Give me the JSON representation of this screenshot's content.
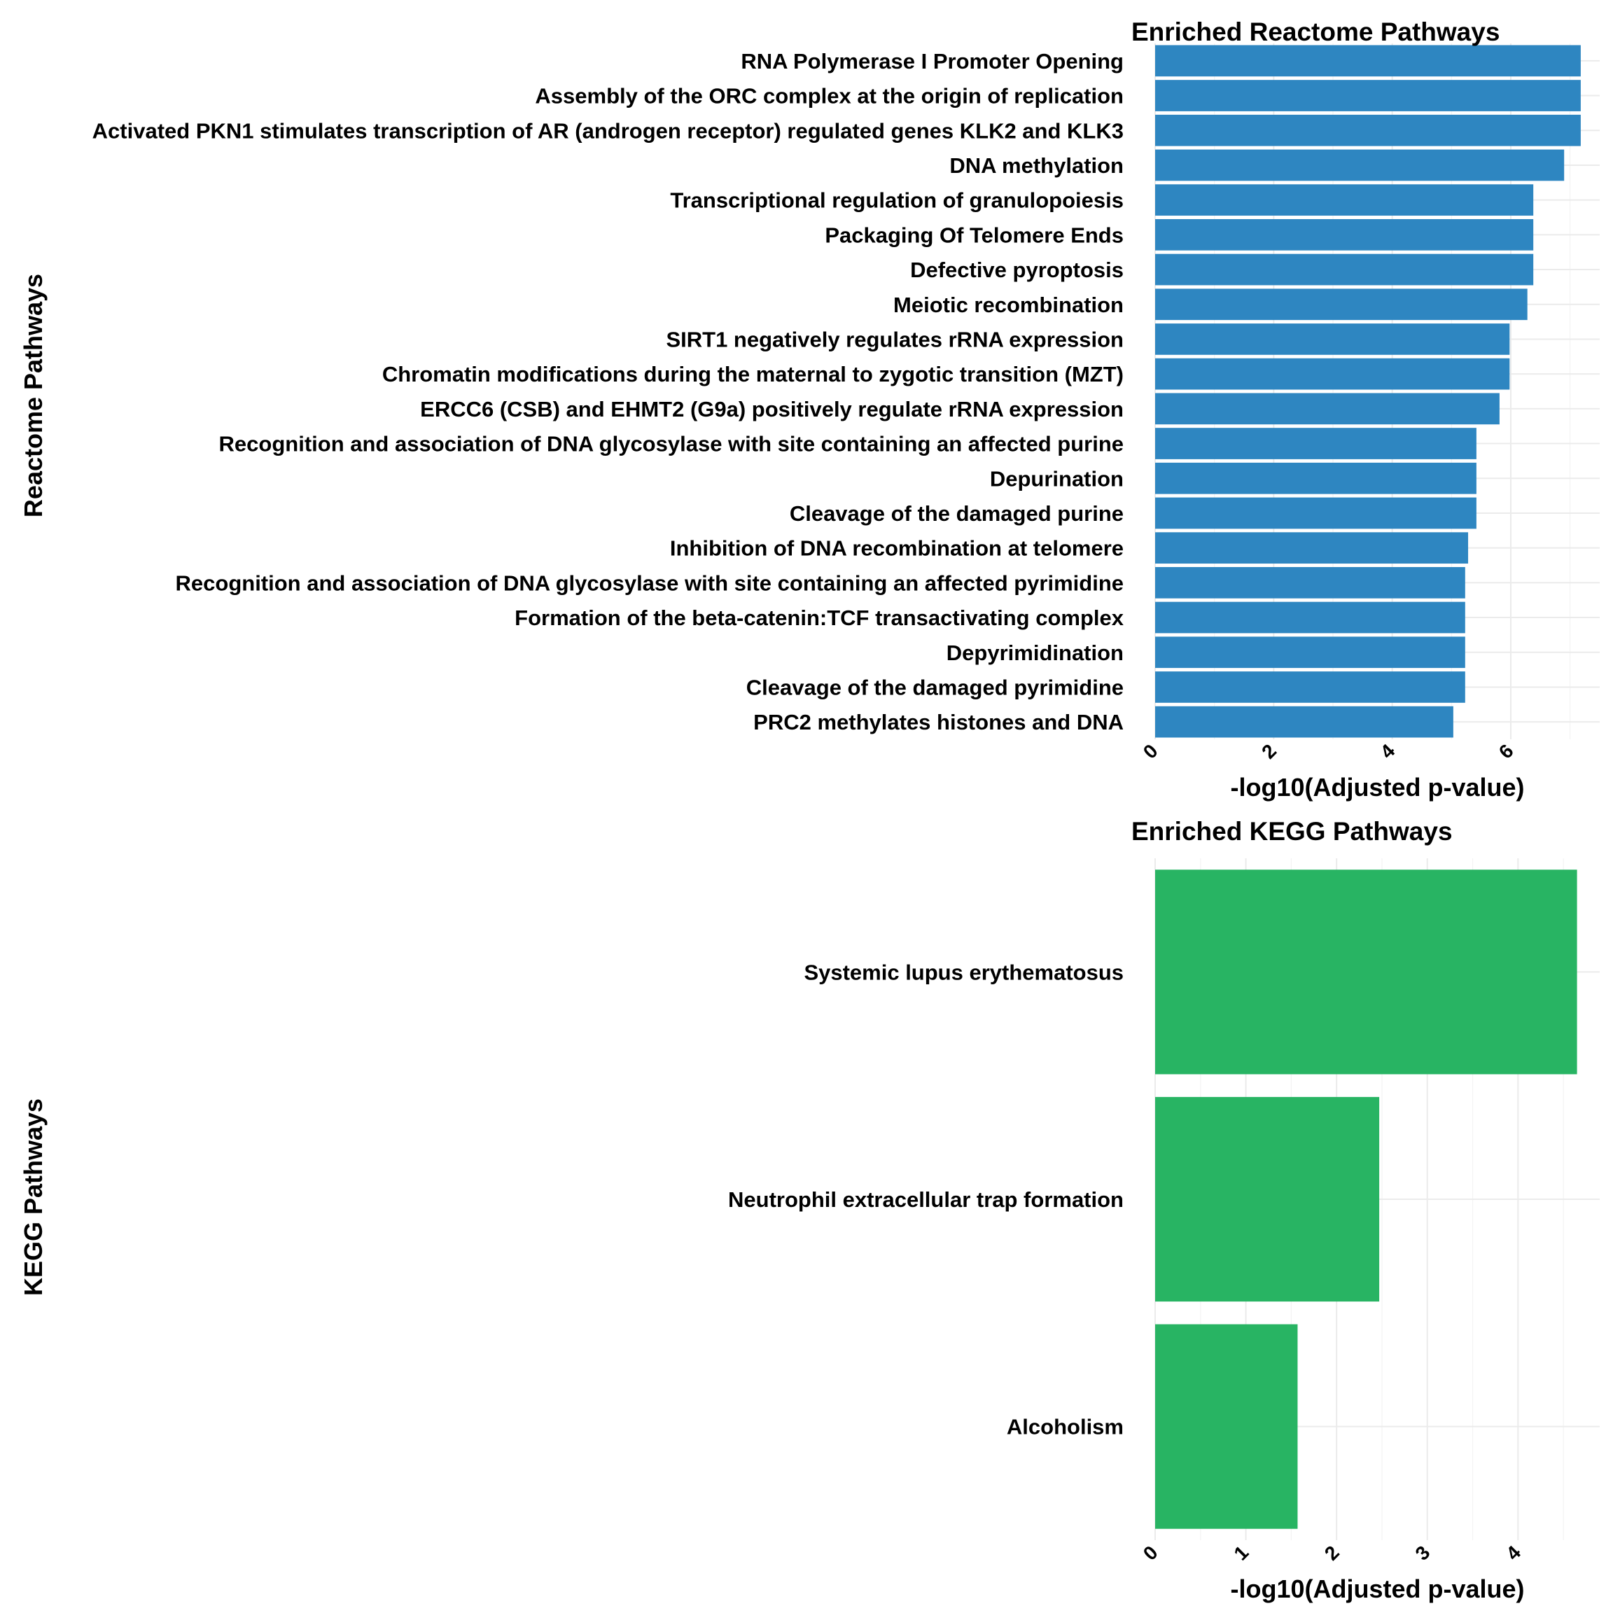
{
  "chart_data": [
    {
      "type": "bar",
      "orientation": "horizontal",
      "title": "Enriched Reactome Pathways",
      "xlabel": "-log10(Adjusted p-value)",
      "ylabel": "Reactome Pathways",
      "bar_color": "#2e86c1",
      "xlim": [
        0,
        7.5
      ],
      "xticks": [
        0,
        2,
        4,
        6
      ],
      "grid": true,
      "categories": [
        "RNA Polymerase I Promoter Opening",
        "Assembly of the ORC complex at the origin of replication",
        "Activated PKN1 stimulates transcription of AR (androgen receptor) regulated genes KLK2 and KLK3",
        "DNA methylation",
        "Transcriptional regulation of granulopoiesis",
        "Packaging Of Telomere Ends",
        "Defective pyroptosis",
        "Meiotic recombination",
        "SIRT1 negatively regulates rRNA expression",
        "Chromatin modifications during the maternal to zygotic transition (MZT)",
        "ERCC6 (CSB) and EHMT2 (G9a) positively regulate rRNA expression",
        "Recognition and association of DNA glycosylase with site containing an affected purine",
        "Depurination",
        "Cleavage of the damaged purine",
        "Inhibition of DNA recombination at telomere",
        "Recognition and association of DNA glycosylase with site containing an affected pyrimidine",
        "Formation of the beta-catenin:TCF transactivating complex",
        "Depyrimidination",
        "Cleavage of the damaged pyrimidine",
        "PRC2 methylates histones and DNA"
      ],
      "values": [
        7.18,
        7.18,
        7.18,
        6.9,
        6.38,
        6.38,
        6.38,
        6.28,
        5.98,
        5.98,
        5.81,
        5.42,
        5.42,
        5.42,
        5.28,
        5.23,
        5.23,
        5.23,
        5.23,
        5.03
      ]
    },
    {
      "type": "bar",
      "orientation": "horizontal",
      "title": "Enriched KEGG Pathways",
      "xlabel": "-log10(Adjusted p-value)",
      "ylabel": "KEGG Pathways",
      "bar_color": "#28b463",
      "xlim": [
        0,
        4.9
      ],
      "xticks": [
        0,
        1,
        2,
        3,
        4
      ],
      "grid": true,
      "categories": [
        "Systemic lupus erythematosus",
        "Neutrophil extracellular trap formation",
        "Alcoholism"
      ],
      "values": [
        4.65,
        2.47,
        1.57
      ]
    }
  ]
}
